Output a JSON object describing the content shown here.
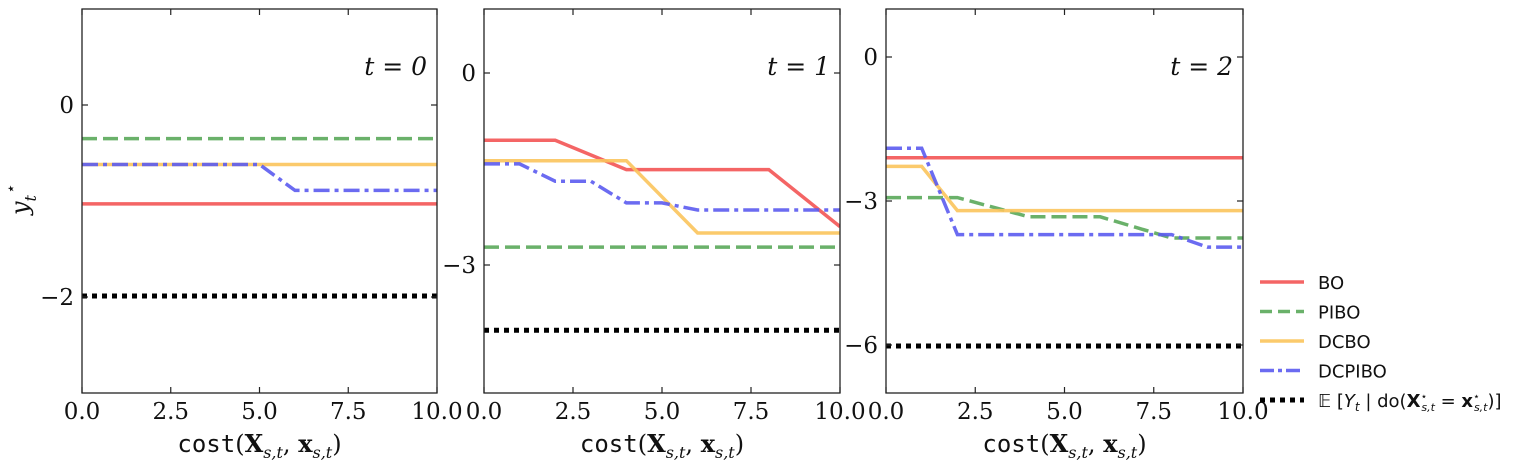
{
  "chart_data": [
    {
      "type": "line",
      "panel_label": "t = 0",
      "xlabel": "cost(X_{s,t}, x_{s,t})",
      "ylabel": "y_t*",
      "xlim": [
        0,
        10
      ],
      "ylim": [
        -3,
        1
      ],
      "xticks": [
        0.0,
        2.5,
        5.0,
        7.5,
        10.0
      ],
      "xtick_labels": [
        "0.0",
        "2.5",
        "5.0",
        "7.5",
        "10.0"
      ],
      "yticks": [
        0,
        -2
      ],
      "ytick_labels": [
        "0",
        "−2"
      ],
      "series": [
        {
          "key": "BO",
          "x": [
            0,
            10
          ],
          "y": [
            -1.03,
            -1.03
          ]
        },
        {
          "key": "PIBO",
          "x": [
            0,
            10
          ],
          "y": [
            -0.35,
            -0.35
          ]
        },
        {
          "key": "DCBO",
          "x": [
            0,
            10
          ],
          "y": [
            -0.62,
            -0.62
          ]
        },
        {
          "key": "DCPIBO",
          "x": [
            0,
            5,
            6,
            10
          ],
          "y": [
            -0.62,
            -0.62,
            -0.89,
            -0.89
          ]
        },
        {
          "key": "EXP",
          "x": [
            0,
            10
          ],
          "y": [
            -1.99,
            -1.99
          ]
        }
      ]
    },
    {
      "type": "line",
      "panel_label": "t = 1",
      "xlabel": "cost(X_{s,t}, x_{s,t})",
      "xlim": [
        0,
        10
      ],
      "ylim": [
        -5,
        1
      ],
      "xticks": [
        0.0,
        2.5,
        5.0,
        7.5,
        10.0
      ],
      "xtick_labels": [
        "0.0",
        "2.5",
        "5.0",
        "7.5",
        "10.0"
      ],
      "yticks": [
        0,
        -3
      ],
      "ytick_labels": [
        "0",
        "−3"
      ],
      "series": [
        {
          "key": "BO",
          "x": [
            0,
            2,
            4,
            8,
            10
          ],
          "y": [
            -1.05,
            -1.05,
            -1.51,
            -1.51,
            -2.4
          ]
        },
        {
          "key": "PIBO",
          "x": [
            0,
            10
          ],
          "y": [
            -2.72,
            -2.72
          ]
        },
        {
          "key": "DCBO",
          "x": [
            0,
            4,
            6,
            10
          ],
          "y": [
            -1.37,
            -1.37,
            -2.5,
            -2.5
          ]
        },
        {
          "key": "DCPIBO",
          "x": [
            0,
            1,
            2,
            3,
            4,
            5,
            6,
            10
          ],
          "y": [
            -1.42,
            -1.42,
            -1.69,
            -1.69,
            -2.03,
            -2.03,
            -2.14,
            -2.14
          ]
        },
        {
          "key": "EXP",
          "x": [
            0,
            10
          ],
          "y": [
            -4.02,
            -4.02
          ]
        }
      ]
    },
    {
      "type": "line",
      "panel_label": "t = 2",
      "xlabel": "cost(X_{s,t}, x_{s,t})",
      "xlim": [
        0,
        10
      ],
      "ylim": [
        -7,
        1
      ],
      "xticks": [
        0.0,
        2.5,
        5.0,
        7.5,
        10.0
      ],
      "xtick_labels": [
        "0.0",
        "2.5",
        "5.0",
        "7.5",
        "10.0"
      ],
      "yticks": [
        0,
        -3,
        -6
      ],
      "ytick_labels": [
        "0",
        "−3",
        "−6"
      ],
      "series": [
        {
          "key": "BO",
          "x": [
            0,
            10
          ],
          "y": [
            -2.1,
            -2.1
          ]
        },
        {
          "key": "PIBO",
          "x": [
            0,
            2,
            4,
            6,
            8,
            10
          ],
          "y": [
            -2.93,
            -2.93,
            -3.33,
            -3.33,
            -3.77,
            -3.77
          ]
        },
        {
          "key": "DCBO",
          "x": [
            0,
            1,
            2,
            10
          ],
          "y": [
            -2.28,
            -2.28,
            -3.2,
            -3.2
          ]
        },
        {
          "key": "DCPIBO",
          "x": [
            0,
            1,
            2,
            8,
            9,
            10
          ],
          "y": [
            -1.9,
            -1.9,
            -3.7,
            -3.7,
            -3.96,
            -3.96
          ]
        },
        {
          "key": "EXP",
          "x": [
            0,
            10
          ],
          "y": [
            -6.02,
            -6.02
          ]
        }
      ]
    }
  ],
  "legend": {
    "placement": "right",
    "entries": [
      {
        "key": "BO",
        "label": "BO",
        "color": "#f35454",
        "style": "solid"
      },
      {
        "key": "PIBO",
        "label": "PIBO",
        "color": "#5aa95a",
        "style": "dashed"
      },
      {
        "key": "DCBO",
        "label": "DCBO",
        "color": "#fbc45c",
        "style": "solid"
      },
      {
        "key": "DCPIBO",
        "label": "DCPIBO",
        "color": "#5b5bf0",
        "style": "dashdot"
      },
      {
        "key": "EXP",
        "label": "𝔼 [Y_t | do(X*_{s,t} = x*_{s,t})]",
        "color": "#000000",
        "style": "dotted"
      }
    ]
  }
}
